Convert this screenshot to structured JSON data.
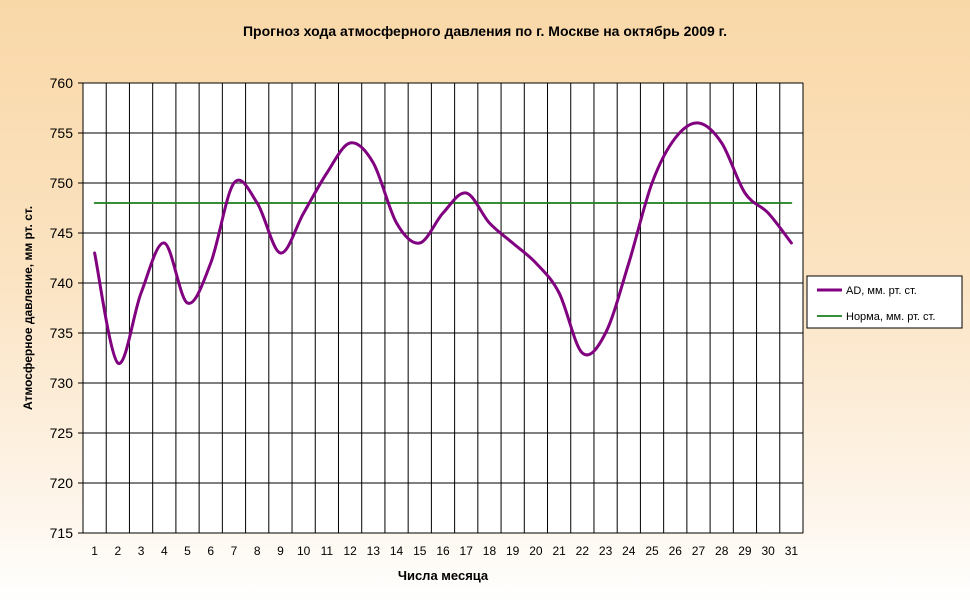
{
  "chart_data": {
    "type": "line",
    "title": "Прогноз хода атмосферного давления по г. Москве на октябрь 2009 г.",
    "xlabel": "Числа месяца",
    "ylabel": "Атмосферное давление, мм рт. ст.",
    "x": [
      1,
      2,
      3,
      4,
      5,
      6,
      7,
      8,
      9,
      10,
      11,
      12,
      13,
      14,
      15,
      16,
      17,
      18,
      19,
      20,
      21,
      22,
      23,
      24,
      25,
      26,
      27,
      28,
      29,
      30,
      31
    ],
    "ylim": [
      715,
      760
    ],
    "yticks": [
      715,
      720,
      725,
      730,
      735,
      740,
      745,
      750,
      755,
      760
    ],
    "grid": true,
    "legend_position": "right",
    "series": [
      {
        "name": "AD, мм. рт. ст.",
        "color": "#800080",
        "values": [
          743,
          732,
          739,
          744,
          738,
          742,
          750,
          748,
          743,
          747,
          751,
          754,
          752,
          746,
          744,
          747,
          749,
          746,
          744,
          742,
          739,
          733,
          735,
          742,
          750,
          754.5,
          756,
          754,
          749,
          747,
          744
        ]
      },
      {
        "name": "Норма, мм. рт. ст.",
        "color": "#1a7f1a",
        "values": [
          748,
          748,
          748,
          748,
          748,
          748,
          748,
          748,
          748,
          748,
          748,
          748,
          748,
          748,
          748,
          748,
          748,
          748,
          748,
          748,
          748,
          748,
          748,
          748,
          748,
          748,
          748,
          748,
          748,
          748,
          748
        ]
      }
    ]
  }
}
